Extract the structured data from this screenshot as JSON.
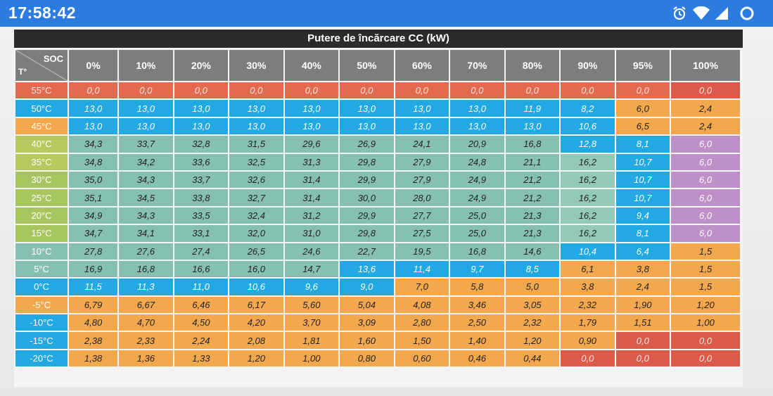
{
  "status_bar": {
    "time": "17:58:42"
  },
  "table": {
    "title": "Putere de încărcare CC (kW)",
    "corner_top": "SOC",
    "corner_bottom": "T°",
    "columns": [
      "0%",
      "10%",
      "20%",
      "30%",
      "40%",
      "50%",
      "60%",
      "70%",
      "80%",
      "90%",
      "95%",
      "100%"
    ],
    "rows": [
      {
        "label": "55°C",
        "values": [
          "0,0",
          "0,0",
          "0,0",
          "0,0",
          "0,0",
          "0,0",
          "0,0",
          "0,0",
          "0,0",
          "0,0",
          "0,0",
          "0,0"
        ]
      },
      {
        "label": "50°C",
        "values": [
          "13,0",
          "13,0",
          "13,0",
          "13,0",
          "13,0",
          "13,0",
          "13,0",
          "13,0",
          "11,9",
          "8,2",
          "6,0",
          "2,4"
        ]
      },
      {
        "label": "45°C",
        "values": [
          "13,0",
          "13,0",
          "13,0",
          "13,0",
          "13,0",
          "13,0",
          "13,0",
          "13,0",
          "13,0",
          "10,6",
          "6,5",
          "2,4"
        ]
      },
      {
        "label": "40°C",
        "values": [
          "34,3",
          "33,7",
          "32,8",
          "31,5",
          "29,6",
          "26,9",
          "24,1",
          "20,9",
          "16,8",
          "12,8",
          "8,1",
          "6,0"
        ]
      },
      {
        "label": "35°C",
        "values": [
          "34,8",
          "34,2",
          "33,6",
          "32,5",
          "31,3",
          "29,8",
          "27,9",
          "24,8",
          "21,1",
          "16,2",
          "10,7",
          "6,0"
        ]
      },
      {
        "label": "30°C",
        "values": [
          "35,0",
          "34,3",
          "33,7",
          "32,6",
          "31,4",
          "29,9",
          "27,9",
          "24,9",
          "21,2",
          "16,2",
          "10,7",
          "6,0"
        ]
      },
      {
        "label": "25°C",
        "values": [
          "35,1",
          "34,5",
          "33,8",
          "32,7",
          "31,4",
          "30,0",
          "28,0",
          "24,9",
          "21,2",
          "16,2",
          "10,7",
          "6,0"
        ]
      },
      {
        "label": "20°C",
        "values": [
          "34,9",
          "34,3",
          "33,5",
          "32,4",
          "31,2",
          "29,9",
          "27,7",
          "25,0",
          "21,3",
          "16,2",
          "9,4",
          "6,0"
        ]
      },
      {
        "label": "15°C",
        "values": [
          "34,7",
          "34,1",
          "33,1",
          "32,0",
          "31,0",
          "29,8",
          "27,5",
          "25,0",
          "21,3",
          "16,2",
          "8,1",
          "6,0"
        ]
      },
      {
        "label": "10°C",
        "values": [
          "27,8",
          "27,6",
          "27,4",
          "26,5",
          "24,6",
          "22,7",
          "19,5",
          "16,8",
          "14,6",
          "10,4",
          "6,4",
          "1,5"
        ]
      },
      {
        "label": "5°C",
        "values": [
          "16,9",
          "16,8",
          "16,6",
          "16,0",
          "14,7",
          "13,6",
          "11,4",
          "9,7",
          "8,5",
          "6,1",
          "3,8",
          "1,5"
        ]
      },
      {
        "label": "0°C",
        "values": [
          "11,5",
          "11,3",
          "11,0",
          "10,6",
          "9,6",
          "9,0",
          "7,0",
          "5,8",
          "5,0",
          "3,8",
          "2,4",
          "1,5"
        ]
      },
      {
        "label": "-5°C",
        "values": [
          "6,79",
          "6,67",
          "6,46",
          "6,17",
          "5,60",
          "5,04",
          "4,08",
          "3,46",
          "3,05",
          "2,32",
          "1,90",
          "1,20"
        ]
      },
      {
        "label": "-10°C",
        "values": [
          "4,80",
          "4,70",
          "4,50",
          "4,20",
          "3,70",
          "3,09",
          "2,80",
          "2,50",
          "2,32",
          "1,79",
          "1,51",
          "1,00"
        ]
      },
      {
        "label": "-15°C",
        "values": [
          "2,38",
          "2,33",
          "2,24",
          "2,08",
          "1,81",
          "1,60",
          "1,50",
          "1,40",
          "1,20",
          "0,90",
          "0,0",
          "0,0"
        ]
      },
      {
        "label": "-20°C",
        "values": [
          "1,38",
          "1,36",
          "1,33",
          "1,20",
          "1,00",
          "0,80",
          "0,60",
          "0,46",
          "0,44",
          "0,0",
          "0,0",
          "0,0"
        ]
      }
    ],
    "colors": {
      "red": "#e3694f",
      "blue": "#22a8e2",
      "teal": "#86c0b2",
      "orange": "#f4a84d",
      "purple": "#bf8fc8",
      "header_gray": "#7d7d7d",
      "title_black": "#2b2b2b"
    }
  }
}
